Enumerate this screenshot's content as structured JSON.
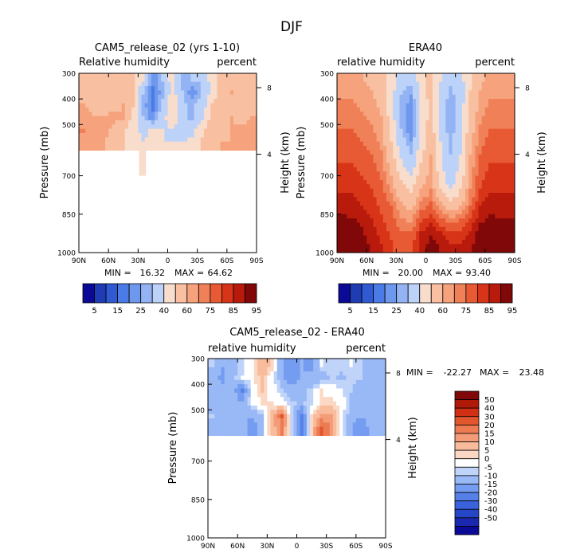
{
  "page_title": "DJF",
  "colors": {
    "model_obs_bins": [
      "#0a0a96",
      "#1f3cb4",
      "#2f5ad2",
      "#4a7be6",
      "#6e98ee",
      "#93b3f4",
      "#bcd2f8",
      "#f8dccc",
      "#f8c0a0",
      "#f6a27c",
      "#f08058",
      "#e85a34",
      "#d83418",
      "#b81a0c",
      "#800808"
    ],
    "diff_bins": [
      "#0a0a96",
      "#1a28b0",
      "#2646c8",
      "#3a62dc",
      "#5480e8",
      "#749cf0",
      "#98b8f6",
      "#c0d4fa",
      "#ffffff",
      "#fad8c4",
      "#f8bc9c",
      "#f49c78",
      "#ee7a52",
      "#e2562e",
      "#d23014",
      "#b01a08",
      "#800808"
    ]
  },
  "chart_data": [
    {
      "id": "model",
      "type": "heatmap",
      "title": "CAM5_release_02 (yrs 1-10)",
      "left_label": "Relative humidity",
      "right_label": "percent",
      "ylabel": "Pressure (mb)",
      "y2label": "Height (km)",
      "xticks": [
        "90N",
        "60N",
        "30N",
        "0",
        "30S",
        "60S",
        "90S"
      ],
      "xlim": [
        90,
        -90
      ],
      "yticks": [
        300,
        400,
        500,
        700,
        850,
        1000
      ],
      "ylim": [
        300,
        1000
      ],
      "y2ticks": [
        {
          "value": 8,
          "pressure": 356
        },
        {
          "value": 4,
          "pressure": 616
        }
      ],
      "stats": {
        "min_label": "MIN =",
        "min": "16.32",
        "max_label": "MAX =",
        "max": "64.62"
      },
      "colorbar_labels": [
        "5",
        "15",
        "25",
        "40",
        "60",
        "75",
        "85",
        "95"
      ],
      "lat": [
        85,
        75,
        65,
        55,
        45,
        35,
        25,
        15,
        5,
        -5,
        -15,
        -25,
        -35,
        -45,
        -55,
        -65,
        -75,
        -85
      ],
      "pressure": [
        325,
        375,
        425,
        475,
        525,
        575
      ],
      "values": [
        [
          57,
          52,
          52,
          55,
          57,
          55,
          40,
          22,
          30,
          45,
          28,
          30,
          32,
          44,
          56,
          58,
          56,
          57
        ],
        [
          57,
          52,
          56,
          58,
          57,
          50,
          30,
          18,
          28,
          45,
          30,
          20,
          30,
          44,
          56,
          60,
          57,
          57
        ],
        [
          60,
          58,
          57,
          58,
          60,
          50,
          28,
          18,
          32,
          48,
          32,
          28,
          34,
          50,
          57,
          58,
          58,
          57
        ],
        [
          62,
          60,
          60,
          62,
          60,
          48,
          30,
          22,
          36,
          48,
          33,
          28,
          38,
          55,
          57,
          60,
          58,
          60
        ],
        [
          65,
          62,
          62,
          58,
          50,
          42,
          38,
          42,
          40,
          38,
          38,
          38,
          48,
          56,
          58,
          60,
          62,
          62
        ],
        [
          62,
          62,
          60,
          57,
          50,
          44,
          40,
          42,
          40,
          40,
          40,
          42,
          52,
          56,
          60,
          60,
          62,
          62
        ]
      ],
      "thresholds": [
        5,
        10,
        15,
        20,
        25,
        30,
        40,
        50,
        60,
        65,
        70,
        75,
        80,
        85,
        90,
        95
      ],
      "data_extent": {
        "top_pressure": 300,
        "bottom_pressure": 600,
        "notch_lat": [
          29,
          22
        ],
        "notch_pressure": 700
      }
    },
    {
      "id": "obs",
      "type": "heatmap",
      "title": "ERA40",
      "left_label": "relative humidity",
      "right_label": "percent",
      "ylabel": "Pressure (mb)",
      "y2label": "Height (km)",
      "xticks": [
        "90N",
        "60N",
        "30N",
        "0",
        "30S",
        "60S",
        "90S"
      ],
      "xlim": [
        90,
        -90
      ],
      "yticks": [
        300,
        400,
        500,
        700,
        850,
        1000
      ],
      "ylim": [
        300,
        1000
      ],
      "y2ticks": [
        {
          "value": 8,
          "pressure": 356
        },
        {
          "value": 4,
          "pressure": 616
        }
      ],
      "stats": {
        "min_label": "MIN =",
        "min": "20.00",
        "max_label": "MAX =",
        "max": "93.40"
      },
      "colorbar_labels": [
        "5",
        "15",
        "25",
        "40",
        "60",
        "75",
        "85",
        "95"
      ],
      "lat": [
        85,
        75,
        65,
        55,
        45,
        35,
        25,
        15,
        5,
        -5,
        -15,
        -25,
        -35,
        -45,
        -55,
        -65,
        -75,
        -85
      ],
      "pressure": [
        325,
        375,
        425,
        475,
        525,
        575,
        625,
        675,
        725,
        775,
        825,
        875,
        925,
        975
      ],
      "values": [
        [
          62,
          62,
          60,
          58,
          56,
          46,
          36,
          32,
          44,
          55,
          40,
          32,
          36,
          48,
          58,
          62,
          64,
          64
        ],
        [
          64,
          64,
          62,
          60,
          56,
          44,
          30,
          26,
          42,
          55,
          38,
          28,
          34,
          50,
          60,
          64,
          64,
          64
        ],
        [
          66,
          66,
          64,
          62,
          58,
          44,
          28,
          22,
          40,
          54,
          36,
          26,
          34,
          52,
          62,
          66,
          66,
          66
        ],
        [
          68,
          68,
          66,
          64,
          60,
          46,
          28,
          22,
          40,
          54,
          36,
          26,
          34,
          54,
          64,
          68,
          68,
          68
        ],
        [
          70,
          70,
          68,
          66,
          62,
          48,
          30,
          22,
          42,
          56,
          38,
          26,
          36,
          56,
          66,
          70,
          70,
          70
        ],
        [
          72,
          72,
          70,
          68,
          64,
          50,
          34,
          26,
          44,
          58,
          40,
          28,
          38,
          58,
          68,
          72,
          72,
          72
        ],
        [
          74,
          74,
          72,
          70,
          66,
          54,
          38,
          30,
          48,
          60,
          42,
          30,
          40,
          60,
          70,
          74,
          74,
          74
        ],
        [
          76,
          76,
          74,
          72,
          68,
          58,
          44,
          36,
          52,
          62,
          44,
          32,
          42,
          62,
          72,
          76,
          76,
          76
        ],
        [
          78,
          78,
          76,
          74,
          70,
          62,
          50,
          44,
          56,
          64,
          46,
          36,
          46,
          64,
          74,
          78,
          78,
          78
        ],
        [
          80,
          80,
          78,
          76,
          72,
          66,
          56,
          52,
          62,
          66,
          54,
          44,
          52,
          66,
          76,
          80,
          80,
          80
        ],
        [
          84,
          82,
          80,
          78,
          74,
          70,
          62,
          58,
          68,
          72,
          64,
          56,
          60,
          70,
          80,
          84,
          82,
          82
        ],
        [
          86,
          86,
          84,
          80,
          76,
          72,
          66,
          64,
          74,
          78,
          72,
          68,
          70,
          76,
          84,
          86,
          86,
          86
        ],
        [
          88,
          90,
          86,
          82,
          78,
          74,
          70,
          70,
          80,
          84,
          80,
          76,
          76,
          80,
          88,
          90,
          88,
          88
        ],
        [
          90,
          92,
          88,
          84,
          80,
          76,
          72,
          74,
          82,
          88,
          84,
          80,
          80,
          84,
          90,
          93,
          90,
          90
        ]
      ],
      "thresholds": [
        5,
        10,
        15,
        20,
        25,
        30,
        40,
        50,
        60,
        65,
        70,
        75,
        80,
        85,
        90,
        95
      ]
    },
    {
      "id": "diff",
      "type": "heatmap",
      "title": "CAM5_release_02 - ERA40",
      "left_label": "relative humidity",
      "right_label": "percent",
      "ylabel": "Pressure (mb)",
      "y2label": "Height (km)",
      "xticks": [
        "90N",
        "60N",
        "30N",
        "0",
        "30S",
        "60S",
        "90S"
      ],
      "xlim": [
        90,
        -90
      ],
      "yticks": [
        300,
        400,
        500,
        700,
        850,
        1000
      ],
      "ylim": [
        300,
        1000
      ],
      "y2ticks": [
        {
          "value": 8,
          "pressure": 356
        },
        {
          "value": 4,
          "pressure": 616
        }
      ],
      "stats": {
        "min_label": "MIN =",
        "min": "-22.27",
        "max_label": "MAX =",
        "max": "23.48"
      },
      "colorbar_labels": [
        "50",
        "40",
        "30",
        "20",
        "15",
        "10",
        "5",
        "0",
        "-5",
        "-10",
        "-15",
        "-20",
        "-30",
        "-40",
        "-50"
      ],
      "lat": [
        85,
        75,
        65,
        55,
        45,
        35,
        25,
        15,
        5,
        -5,
        -15,
        -25,
        -35,
        -45,
        -55,
        -65,
        -75,
        -85
      ],
      "pressure": [
        325,
        375,
        425,
        475,
        525,
        575
      ],
      "values": [
        [
          -5,
          -10,
          -8,
          -3,
          1,
          9,
          4,
          -10,
          -14,
          -10,
          -12,
          -2,
          -4,
          -4,
          -2,
          -4,
          -8,
          -7
        ],
        [
          -7,
          -12,
          -6,
          -2,
          1,
          6,
          0,
          -8,
          -14,
          -10,
          -8,
          -8,
          -4,
          -6,
          -4,
          -4,
          -10,
          -7
        ],
        [
          -6,
          -8,
          -8,
          -16,
          -2,
          6,
          0,
          -4,
          -8,
          -6,
          -4,
          2,
          0,
          -2,
          -5,
          -8,
          -8,
          -9
        ],
        [
          -6,
          -8,
          -6,
          -10,
          0,
          2,
          2,
          0,
          -4,
          -6,
          -3,
          2,
          4,
          1,
          -6,
          -8,
          -10,
          -8
        ],
        [
          -5,
          -8,
          -6,
          -8,
          -10,
          -6,
          8,
          20,
          -4,
          -18,
          2,
          12,
          12,
          0,
          -8,
          -10,
          -8,
          -8
        ],
        [
          -10,
          -10,
          -10,
          -6,
          -14,
          -6,
          6,
          16,
          -4,
          -20,
          4,
          23,
          14,
          0,
          -10,
          -12,
          -10,
          -10
        ]
      ],
      "thresholds": [
        -50,
        -40,
        -30,
        -20,
        -15,
        -10,
        -5,
        -2,
        2,
        5,
        10,
        15,
        20,
        30,
        40,
        50
      ],
      "data_extent": {
        "top_pressure": 300,
        "bottom_pressure": 600,
        "notch_lat": [
          33,
          26
        ],
        "notch_pressure": 700
      }
    }
  ]
}
